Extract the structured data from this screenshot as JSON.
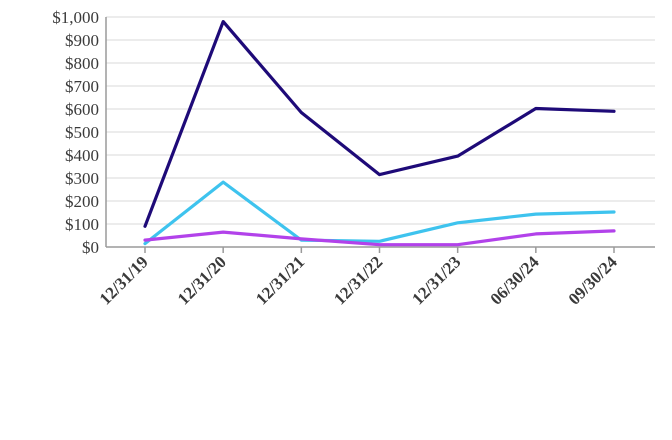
{
  "chart_data": {
    "type": "line",
    "title": "",
    "xlabel": "",
    "ylabel": "",
    "categories": [
      "12/31/19",
      "12/31/20",
      "12/31/21",
      "12/31/22",
      "12/31/23",
      "06/30/24",
      "09/30/24"
    ],
    "ylim": [
      0,
      1000
    ],
    "yticks": [
      0,
      100,
      200,
      300,
      400,
      500,
      600,
      700,
      800,
      900,
      1000
    ],
    "ytick_labels": [
      "$0",
      "$100",
      "$200",
      "$300",
      "$400",
      "$500",
      "$600",
      "$700",
      "$800",
      "$900",
      "$1,000"
    ],
    "grid": true,
    "legend": "none",
    "series": [
      {
        "color": "#1e0a78",
        "values": [
          90,
          980,
          585,
          315,
          395,
          602,
          590
        ]
      },
      {
        "color": "#3ec3ee",
        "values": [
          15,
          282,
          30,
          25,
          105,
          143,
          152
        ]
      },
      {
        "color": "#b242ea",
        "values": [
          30,
          65,
          35,
          10,
          10,
          57,
          70
        ]
      }
    ]
  }
}
